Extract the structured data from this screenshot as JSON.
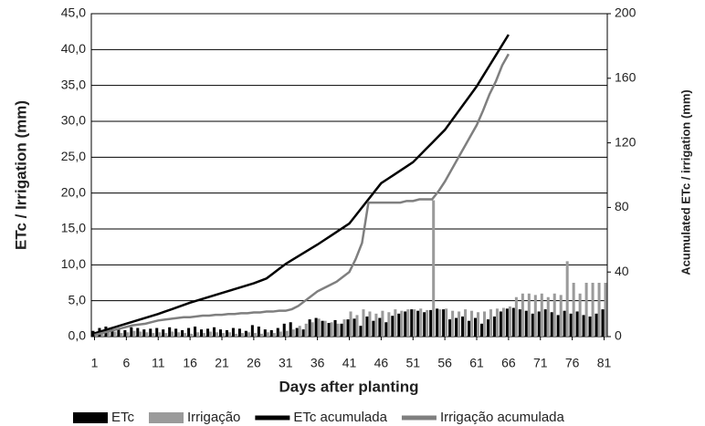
{
  "chart_data": {
    "type": "bar-line",
    "x_label": "Days after planting",
    "y_label": "ETc / Irrigation  (mm)",
    "y2_label": "Acumulated  ETc / irrigation  (mm)",
    "x": [
      1,
      2,
      3,
      4,
      5,
      6,
      7,
      8,
      9,
      10,
      11,
      12,
      13,
      14,
      15,
      16,
      17,
      18,
      19,
      20,
      21,
      22,
      23,
      24,
      25,
      26,
      27,
      28,
      29,
      30,
      31,
      32,
      33,
      34,
      35,
      36,
      37,
      38,
      39,
      40,
      41,
      42,
      43,
      44,
      45,
      46,
      47,
      48,
      49,
      50,
      51,
      52,
      53,
      54,
      55,
      56,
      57,
      58,
      59,
      60,
      61,
      62,
      63,
      64,
      65,
      66,
      67,
      68,
      69,
      70,
      71,
      72,
      73,
      74,
      75,
      76,
      77,
      78,
      79,
      80,
      81
    ],
    "xlim": [
      0.5,
      81.5
    ],
    "xticks": [
      1,
      6,
      11,
      16,
      21,
      26,
      31,
      36,
      41,
      46,
      51,
      56,
      61,
      66,
      71,
      76,
      81
    ],
    "ylim": [
      0,
      45
    ],
    "yticks": [
      {
        "value": 0,
        "label": "0,0"
      },
      {
        "value": 5,
        "label": "5,0"
      },
      {
        "value": 10,
        "label": "10,0"
      },
      {
        "value": 15,
        "label": "15,0"
      },
      {
        "value": 20,
        "label": "20,0"
      },
      {
        "value": 25,
        "label": "25,0"
      },
      {
        "value": 30,
        "label": "30,0"
      },
      {
        "value": 35,
        "label": "35,0"
      },
      {
        "value": 40,
        "label": "40,0"
      },
      {
        "value": 45,
        "label": "45,0"
      }
    ],
    "y2lim": [
      0,
      200
    ],
    "y2ticks": [
      0,
      40,
      80,
      120,
      160,
      200
    ],
    "grid": true,
    "legend": "bottom",
    "series": [
      {
        "name": "ETc",
        "kind": "bar",
        "color": "#000000",
        "values": [
          0.8,
          1.2,
          1.4,
          1.0,
          1.1,
          0.9,
          1.3,
          1.2,
          1.0,
          1.1,
          1.2,
          1.0,
          1.3,
          1.1,
          0.9,
          1.2,
          1.4,
          1.0,
          1.1,
          1.3,
          1.0,
          0.9,
          1.2,
          1.1,
          0.8,
          1.6,
          1.4,
          1.0,
          0.9,
          1.2,
          1.8,
          2.0,
          1.2,
          1.0,
          2.4,
          2.6,
          2.2,
          1.9,
          2.3,
          1.8,
          2.4,
          2.5,
          1.5,
          2.8,
          2.2,
          2.6,
          2.0,
          2.9,
          3.2,
          3.5,
          3.8,
          3.6,
          3.4,
          3.7,
          3.9,
          3.8,
          2.4,
          2.6,
          2.8,
          2.2,
          2.6,
          1.8,
          2.4,
          2.8,
          3.5,
          3.9,
          4.0,
          3.8,
          3.6,
          3.2,
          3.5,
          3.8,
          3.4,
          3.0,
          3.6,
          3.2,
          3.5,
          3.0,
          2.8,
          3.2,
          3.8
        ]
      },
      {
        "name": "Irrigação",
        "kind": "bar",
        "color": "#9a9a9a",
        "values": [
          0.5,
          0.8,
          0.6,
          0.7,
          0.5,
          0.6,
          0.8,
          0.7,
          0.6,
          0.5,
          0.6,
          0.5,
          0.7,
          0.6,
          0.5,
          0.4,
          0.6,
          0.5,
          0.7,
          0.6,
          0.5,
          0.6,
          0.4,
          0.5,
          0.6,
          0.5,
          0.4,
          0.6,
          0.5,
          0.7,
          0.8,
          1.0,
          1.5,
          1.8,
          2.0,
          2.5,
          2.2,
          2.0,
          1.8,
          2.4,
          3.5,
          3.0,
          3.8,
          3.5,
          3.2,
          3.6,
          3.4,
          3.8,
          3.6,
          3.8,
          3.8,
          3.9,
          3.7,
          19.0,
          3.8,
          3.9,
          3.6,
          3.5,
          3.8,
          3.6,
          3.4,
          3.5,
          3.8,
          3.9,
          4.0,
          4.2,
          5.5,
          6.0,
          6.0,
          5.8,
          6.0,
          5.5,
          6.0,
          5.8,
          10.5,
          7.5,
          6.0,
          7.5,
          7.5,
          7.5,
          7.5
        ]
      },
      {
        "name": "ETc acumulada",
        "kind": "line",
        "axis": "y2",
        "color": "#000000",
        "values": [
          2,
          3.2,
          4.4,
          5.6,
          6.8,
          8,
          9.2,
          10.4,
          11.6,
          12.8,
          14,
          15.4,
          16.8,
          18.2,
          19.6,
          21,
          22.2,
          23.4,
          24.6,
          25.8,
          27,
          28.2,
          29.4,
          30.6,
          31.8,
          33,
          34.5,
          36,
          39,
          42,
          45,
          47.4,
          49.8,
          52.2,
          54.6,
          57,
          59.6,
          62.2,
          64.8,
          67.4,
          70,
          75,
          80,
          85,
          90,
          95,
          97.6,
          100.2,
          102.8,
          105.4,
          108,
          112,
          116,
          120,
          124,
          128,
          133.4,
          138.8,
          144.2,
          149.6,
          155,
          161.4,
          167.8,
          174.2,
          180.6,
          187,
          null,
          null,
          null,
          null,
          null,
          null,
          null,
          null,
          null,
          null,
          null,
          null,
          null,
          null,
          null
        ]
      },
      {
        "name": "Irrigação acumulada",
        "kind": "line",
        "axis": "y2",
        "color": "#7f7f7f",
        "values": [
          1,
          2,
          3,
          4,
          5,
          6,
          7,
          7.5,
          8,
          9,
          10,
          10.5,
          11,
          11.5,
          12,
          12,
          12.5,
          13,
          13,
          13.5,
          13.5,
          14,
          14,
          14.5,
          14.5,
          15,
          15,
          15.5,
          15.5,
          16,
          16,
          17,
          19,
          22,
          25,
          28,
          30,
          32,
          34,
          37,
          40,
          48,
          58,
          83,
          83,
          83,
          83,
          83,
          83,
          84,
          84,
          85,
          85,
          85,
          90,
          96,
          103,
          110,
          117,
          124,
          131,
          140,
          150,
          158,
          168,
          175,
          null,
          null,
          null,
          null,
          null,
          null,
          null,
          null,
          null,
          null,
          null,
          null,
          null,
          null,
          null
        ]
      }
    ]
  }
}
